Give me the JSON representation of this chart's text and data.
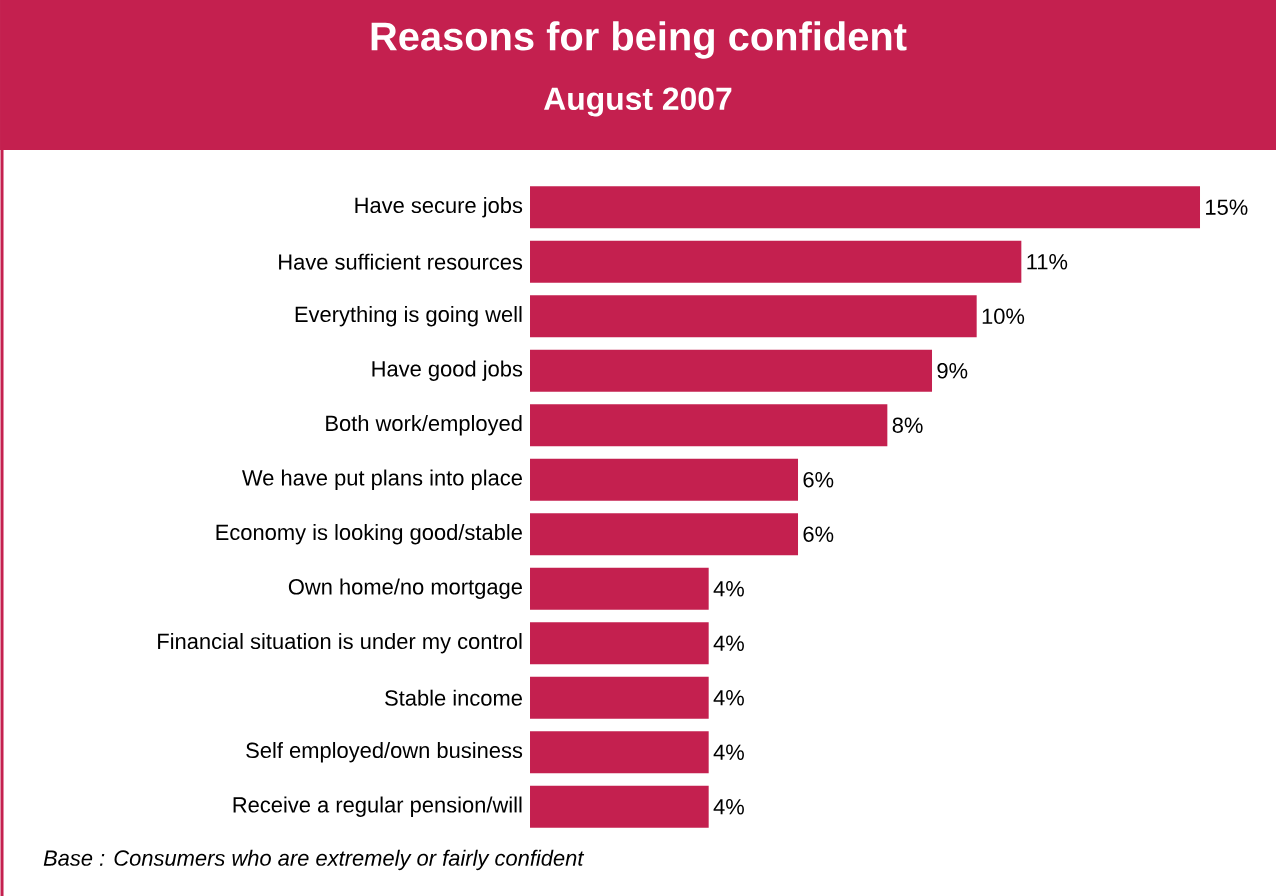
{
  "chart_data": {
    "type": "bar",
    "orientation": "horizontal",
    "title": "Reasons for being confident",
    "subtitle": "August 2007",
    "categories": [
      "Have secure jobs",
      "Have sufficient resources",
      "Everything is going well",
      "Have good jobs",
      "Both work/employed",
      "We have put plans into place",
      "Economy is looking good/stable",
      "Own home/no mortgage",
      "Financial situation is under my control",
      "Stable income",
      "Self employed/own business",
      "Receive a regular pension/will"
    ],
    "values": [
      15,
      11,
      10,
      9,
      8,
      6,
      6,
      4,
      4,
      4,
      4,
      4
    ],
    "value_labels": [
      "15%",
      "11%",
      "10%",
      "9%",
      "8%",
      "6%",
      "6%",
      "4%",
      "4%",
      "4%",
      "4%",
      "4%"
    ],
    "color": "#c4204f",
    "annotations": [
      "Base : Consumers who are extremely or fairly confident"
    ]
  }
}
